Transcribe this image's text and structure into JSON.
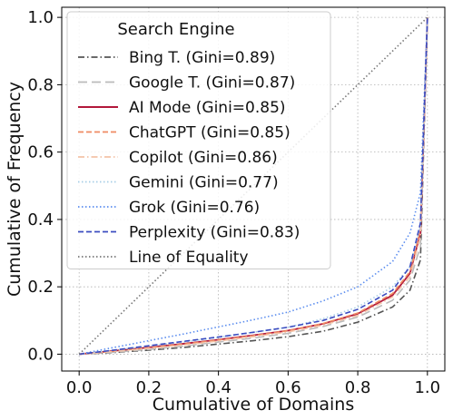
{
  "chart_data": {
    "type": "line",
    "title": "",
    "xlabel": "Cumulative of Domains",
    "ylabel": "Cumulative of Frequency",
    "xlim": [
      -0.05,
      1.05
    ],
    "ylim": [
      -0.05,
      1.03
    ],
    "x_ticks": [
      "0.0",
      "0.2",
      "0.4",
      "0.6",
      "0.8",
      "1.0"
    ],
    "y_ticks": [
      "0.0",
      "0.2",
      "0.4",
      "0.6",
      "0.8",
      "1.0"
    ],
    "grid": true,
    "legend": {
      "title": "Search Engine",
      "placement": "upper-left"
    },
    "series": [
      {
        "name": "Bing T. (Gini=0.89)",
        "color": "#555555",
        "dash": "dashdot",
        "x": [
          0,
          0.1,
          0.2,
          0.3,
          0.4,
          0.5,
          0.6,
          0.7,
          0.8,
          0.9,
          0.95,
          0.98,
          1.0
        ],
        "y": [
          0,
          0.005,
          0.012,
          0.02,
          0.03,
          0.04,
          0.052,
          0.068,
          0.095,
          0.14,
          0.19,
          0.28,
          1.0
        ]
      },
      {
        "name": "Google T. (Gini=0.87)",
        "color": "#bbbbbb",
        "dash": "longdash",
        "x": [
          0,
          0.1,
          0.2,
          0.3,
          0.4,
          0.5,
          0.6,
          0.7,
          0.8,
          0.9,
          0.95,
          0.98,
          1.0
        ],
        "y": [
          0,
          0.006,
          0.014,
          0.024,
          0.036,
          0.048,
          0.062,
          0.082,
          0.11,
          0.16,
          0.22,
          0.32,
          1.0
        ]
      },
      {
        "name": "AI Mode (Gini=0.85)",
        "color": "#b2183b",
        "dash": "solid",
        "x": [
          0,
          0.1,
          0.2,
          0.3,
          0.4,
          0.5,
          0.6,
          0.7,
          0.8,
          0.9,
          0.95,
          0.98,
          1.0
        ],
        "y": [
          0,
          0.01,
          0.02,
          0.031,
          0.043,
          0.056,
          0.07,
          0.09,
          0.12,
          0.175,
          0.24,
          0.36,
          1.0
        ]
      },
      {
        "name": "ChatGPT (Gini=0.85)",
        "color": "#ef8a62",
        "dash": "dashed",
        "x": [
          0,
          0.1,
          0.2,
          0.3,
          0.4,
          0.5,
          0.6,
          0.7,
          0.8,
          0.9,
          0.95,
          0.98,
          1.0
        ],
        "y": [
          0,
          0.009,
          0.019,
          0.03,
          0.042,
          0.055,
          0.07,
          0.091,
          0.122,
          0.18,
          0.245,
          0.37,
          1.0
        ]
      },
      {
        "name": "Copilot (Gini=0.86)",
        "color": "#f4c3a8",
        "dash": "dashdot",
        "x": [
          0,
          0.1,
          0.2,
          0.3,
          0.4,
          0.5,
          0.6,
          0.7,
          0.8,
          0.9,
          0.95,
          0.98,
          1.0
        ],
        "y": [
          0,
          0.008,
          0.017,
          0.027,
          0.039,
          0.052,
          0.066,
          0.086,
          0.115,
          0.17,
          0.23,
          0.35,
          1.0
        ]
      },
      {
        "name": "Gemini (Gini=0.77)",
        "color": "#a6cde6",
        "dash": "dotted",
        "x": [
          0,
          0.1,
          0.2,
          0.3,
          0.4,
          0.5,
          0.6,
          0.7,
          0.8,
          0.9,
          0.95,
          0.98,
          1.0
        ],
        "y": [
          0,
          0.012,
          0.024,
          0.036,
          0.05,
          0.065,
          0.08,
          0.105,
          0.14,
          0.2,
          0.26,
          0.38,
          1.0
        ]
      },
      {
        "name": "Grok (Gini=0.76)",
        "color": "#5b8def",
        "dash": "dotted",
        "x": [
          0,
          0.1,
          0.2,
          0.3,
          0.4,
          0.5,
          0.6,
          0.7,
          0.8,
          0.9,
          0.95,
          0.98,
          1.0
        ],
        "y": [
          0,
          0.02,
          0.04,
          0.06,
          0.081,
          0.102,
          0.125,
          0.158,
          0.2,
          0.275,
          0.36,
          0.48,
          1.0
        ]
      },
      {
        "name": "Perplexity (Gini=0.83)",
        "color": "#3b4cc0",
        "dash": "dashed",
        "x": [
          0,
          0.1,
          0.2,
          0.3,
          0.4,
          0.5,
          0.6,
          0.7,
          0.8,
          0.9,
          0.95,
          0.98,
          1.0
        ],
        "y": [
          0,
          0.012,
          0.025,
          0.038,
          0.051,
          0.065,
          0.08,
          0.1,
          0.133,
          0.19,
          0.26,
          0.39,
          1.0
        ]
      },
      {
        "name": "Line of Equality",
        "color": "#777777",
        "dash": "dotted",
        "x": [
          0,
          1
        ],
        "y": [
          0,
          1
        ]
      }
    ]
  }
}
